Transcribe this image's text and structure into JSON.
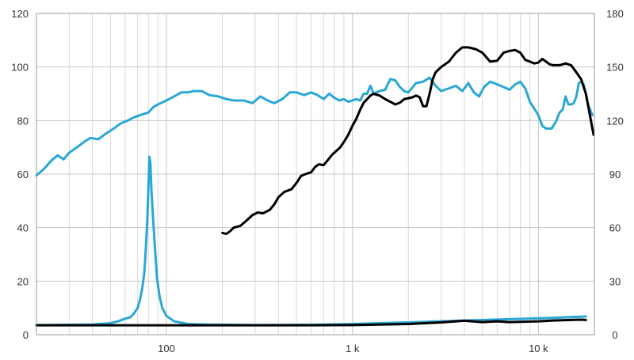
{
  "chart_data": {
    "type": "line",
    "title": "",
    "xlabel": "",
    "ylabel": "",
    "y2label": "",
    "x_scale": "log",
    "xlim": [
      20,
      20000
    ],
    "ylim": [
      0,
      120
    ],
    "y2lim": [
      0,
      180
    ],
    "grid": true,
    "legend": "none",
    "x_ticks": [
      {
        "value": 100,
        "label": "100"
      },
      {
        "value": 1000,
        "label": "1 k"
      },
      {
        "value": 10000,
        "label": "10 k"
      }
    ],
    "y_ticks": [
      "0",
      "20",
      "40",
      "60",
      "80",
      "100",
      "120"
    ],
    "y2_ticks": [
      "0",
      "30",
      "60",
      "90",
      "120",
      "150",
      "180"
    ],
    "series": [
      {
        "color": "#29a8d6",
        "axis": "left",
        "width": 3,
        "points": [
          [
            20,
            59.5
          ],
          [
            22,
            62
          ],
          [
            24,
            65
          ],
          [
            26,
            67
          ],
          [
            28,
            65.5
          ],
          [
            30,
            68
          ],
          [
            33,
            70
          ],
          [
            36,
            72
          ],
          [
            39,
            73.5
          ],
          [
            43,
            73
          ],
          [
            47,
            75
          ],
          [
            52,
            77
          ],
          [
            57,
            79
          ],
          [
            62,
            80
          ],
          [
            66,
            81
          ],
          [
            72,
            82
          ],
          [
            80,
            83
          ],
          [
            85,
            85
          ],
          [
            90,
            86
          ],
          [
            100,
            87.5
          ],
          [
            110,
            89
          ],
          [
            120,
            90.5
          ],
          [
            130,
            90.5
          ],
          [
            140,
            91
          ],
          [
            155,
            91
          ],
          [
            170,
            89.5
          ],
          [
            190,
            89
          ],
          [
            210,
            88
          ],
          [
            230,
            87.5
          ],
          [
            260,
            87.5
          ],
          [
            290,
            86.5
          ],
          [
            320,
            89
          ],
          [
            350,
            87.5
          ],
          [
            380,
            86.5
          ],
          [
            420,
            88
          ],
          [
            460,
            90.5
          ],
          [
            500,
            90.5
          ],
          [
            550,
            89.5
          ],
          [
            600,
            90.5
          ],
          [
            650,
            89.5
          ],
          [
            700,
            88
          ],
          [
            750,
            90
          ],
          [
            800,
            88.5
          ],
          [
            850,
            87.5
          ],
          [
            900,
            88
          ],
          [
            950,
            87
          ],
          [
            1000,
            87.5
          ],
          [
            1050,
            88
          ],
          [
            1100,
            87.5
          ],
          [
            1150,
            90
          ],
          [
            1200,
            90
          ],
          [
            1250,
            93
          ],
          [
            1300,
            90
          ],
          [
            1400,
            91
          ],
          [
            1500,
            91.5
          ],
          [
            1600,
            95.5
          ],
          [
            1700,
            95
          ],
          [
            1800,
            92.5
          ],
          [
            1900,
            91
          ],
          [
            2000,
            90.5
          ],
          [
            2200,
            94
          ],
          [
            2400,
            94.5
          ],
          [
            2600,
            96
          ],
          [
            2800,
            93
          ],
          [
            3000,
            91
          ],
          [
            3300,
            92
          ],
          [
            3600,
            93
          ],
          [
            3900,
            91
          ],
          [
            4200,
            94
          ],
          [
            4500,
            90.5
          ],
          [
            4800,
            89
          ],
          [
            5100,
            92.5
          ],
          [
            5500,
            94.5
          ],
          [
            6000,
            93.5
          ],
          [
            6500,
            92.5
          ],
          [
            7000,
            91.5
          ],
          [
            7500,
            93.5
          ],
          [
            8000,
            94.5
          ],
          [
            8500,
            92
          ],
          [
            9000,
            87
          ],
          [
            10000,
            82
          ],
          [
            10500,
            78
          ],
          [
            11000,
            77
          ],
          [
            11800,
            77
          ],
          [
            12500,
            80
          ],
          [
            13000,
            83
          ],
          [
            13500,
            84
          ],
          [
            14000,
            89
          ],
          [
            14500,
            86
          ],
          [
            15000,
            86
          ],
          [
            15500,
            86.5
          ],
          [
            16000,
            89
          ],
          [
            16500,
            94
          ],
          [
            17000,
            94.5
          ],
          [
            17500,
            93.5
          ],
          [
            18000,
            90
          ],
          [
            18500,
            86
          ],
          [
            19500,
            82
          ]
        ]
      },
      {
        "color": "#29a8d6",
        "axis": "left",
        "width": 3,
        "points": [
          [
            20,
            3.6
          ],
          [
            40,
            3.8
          ],
          [
            50,
            4.3
          ],
          [
            55,
            5
          ],
          [
            60,
            6
          ],
          [
            64,
            6.5
          ],
          [
            67,
            8
          ],
          [
            70,
            10
          ],
          [
            72,
            13
          ],
          [
            74,
            17
          ],
          [
            76,
            23
          ],
          [
            77,
            29
          ],
          [
            78,
            36
          ],
          [
            79,
            44
          ],
          [
            80,
            55
          ],
          [
            81,
            66.5
          ],
          [
            82,
            64
          ],
          [
            83,
            54
          ],
          [
            85,
            42
          ],
          [
            87,
            31
          ],
          [
            89,
            21
          ],
          [
            92,
            14
          ],
          [
            95,
            10
          ],
          [
            100,
            7
          ],
          [
            110,
            5
          ],
          [
            130,
            4
          ],
          [
            160,
            3.8
          ],
          [
            300,
            3.6
          ],
          [
            600,
            3.7
          ],
          [
            1000,
            4
          ],
          [
            2000,
            4.6
          ],
          [
            4000,
            5.3
          ],
          [
            8000,
            5.9
          ],
          [
            12000,
            6.3
          ],
          [
            18000,
            6.8
          ]
        ]
      },
      {
        "color": "#000000",
        "axis": "right",
        "width": 3,
        "points": [
          [
            200,
            57
          ],
          [
            210,
            56.5
          ],
          [
            220,
            58
          ],
          [
            230,
            60
          ],
          [
            250,
            61
          ],
          [
            270,
            64
          ],
          [
            290,
            67
          ],
          [
            310,
            68.5
          ],
          [
            330,
            68
          ],
          [
            360,
            70
          ],
          [
            380,
            73
          ],
          [
            400,
            77
          ],
          [
            430,
            80
          ],
          [
            470,
            81.5
          ],
          [
            500,
            85
          ],
          [
            530,
            89
          ],
          [
            560,
            90
          ],
          [
            600,
            91
          ],
          [
            630,
            94
          ],
          [
            660,
            95.5
          ],
          [
            700,
            95
          ],
          [
            740,
            98
          ],
          [
            780,
            101
          ],
          [
            820,
            103
          ],
          [
            860,
            105
          ],
          [
            900,
            108
          ],
          [
            950,
            112
          ],
          [
            1000,
            117
          ],
          [
            1050,
            121
          ],
          [
            1100,
            126
          ],
          [
            1150,
            130
          ],
          [
            1200,
            132
          ],
          [
            1250,
            134
          ],
          [
            1300,
            135
          ],
          [
            1350,
            134.5
          ],
          [
            1400,
            134
          ],
          [
            1500,
            132
          ],
          [
            1600,
            130.5
          ],
          [
            1700,
            129
          ],
          [
            1800,
            130
          ],
          [
            1900,
            132
          ],
          [
            2000,
            132.5
          ],
          [
            2100,
            133
          ],
          [
            2200,
            134
          ],
          [
            2300,
            133
          ],
          [
            2400,
            128
          ],
          [
            2500,
            128
          ],
          [
            2600,
            135
          ],
          [
            2700,
            143
          ],
          [
            2800,
            147
          ],
          [
            3000,
            150
          ],
          [
            3300,
            153
          ],
          [
            3600,
            158
          ],
          [
            3900,
            161
          ],
          [
            4200,
            161
          ],
          [
            4600,
            160
          ],
          [
            5000,
            158
          ],
          [
            5500,
            153
          ],
          [
            6000,
            153.5
          ],
          [
            6500,
            158
          ],
          [
            7000,
            159
          ],
          [
            7500,
            159.5
          ],
          [
            8000,
            158
          ],
          [
            8500,
            154
          ],
          [
            9000,
            153
          ],
          [
            9500,
            152
          ],
          [
            10000,
            152.5
          ],
          [
            10500,
            154.5
          ],
          [
            11000,
            153
          ],
          [
            11500,
            151.5
          ],
          [
            12000,
            151
          ],
          [
            13000,
            151
          ],
          [
            14000,
            152
          ],
          [
            15000,
            151
          ],
          [
            16000,
            147
          ],
          [
            17000,
            143
          ],
          [
            18000,
            135
          ],
          [
            19000,
            122
          ],
          [
            19800,
            112
          ]
        ]
      },
      {
        "color": "#000000",
        "axis": "left",
        "width": 3,
        "points": [
          [
            20,
            3.5
          ],
          [
            100,
            3.5
          ],
          [
            500,
            3.5
          ],
          [
            1000,
            3.6
          ],
          [
            2000,
            4
          ],
          [
            3000,
            4.6
          ],
          [
            4000,
            5.2
          ],
          [
            5000,
            4.7
          ],
          [
            6000,
            5
          ],
          [
            7000,
            4.7
          ],
          [
            8000,
            4.8
          ],
          [
            10000,
            5
          ],
          [
            12000,
            5.3
          ],
          [
            15000,
            5.5
          ],
          [
            17000,
            5.6
          ],
          [
            18000,
            5.5
          ]
        ]
      }
    ]
  }
}
